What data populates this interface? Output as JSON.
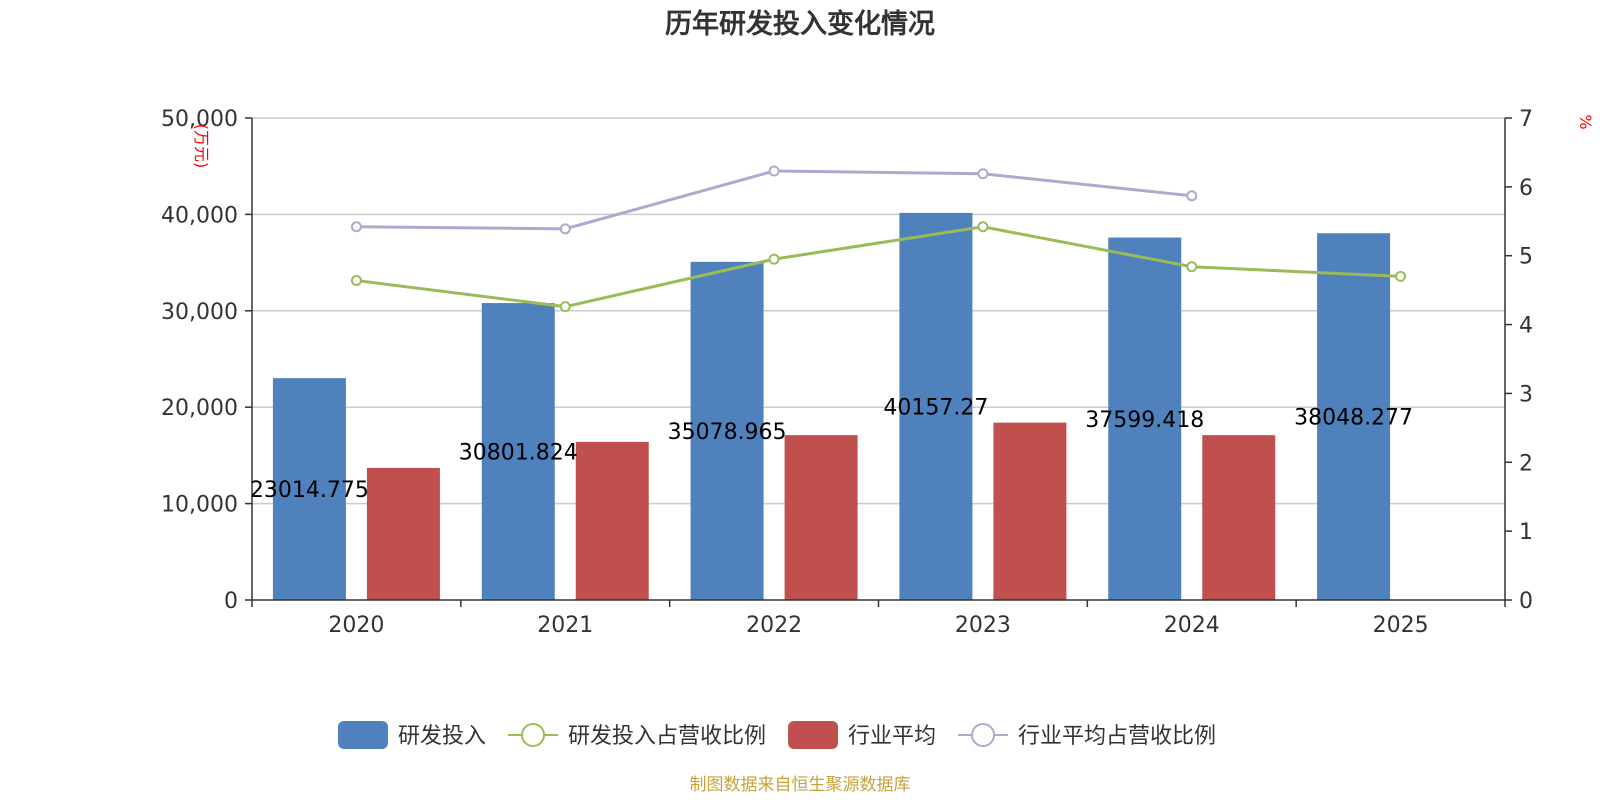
{
  "chart_data": {
    "type": "bar+line",
    "title": "历年研发投入变化情况",
    "categories": [
      "2020",
      "2021",
      "2022",
      "2023",
      "2024",
      "2025"
    ],
    "left_axis": {
      "unit": "万元",
      "min": 0,
      "max": 50000,
      "ticks": [
        "0",
        "10,000",
        "20,000",
        "30,000",
        "40,000",
        "50,000"
      ]
    },
    "right_axis": {
      "unit": "%",
      "min": 0,
      "max": 7,
      "ticks": [
        "0",
        "1",
        "2",
        "3",
        "4",
        "5",
        "6",
        "7"
      ]
    },
    "series": [
      {
        "name": "研发投入",
        "type": "bar",
        "axis": "left",
        "color": "#4f81bd",
        "values": [
          23014.775,
          30801.824,
          35078.965,
          40157.27,
          37599.418,
          38048.277
        ],
        "labels": [
          "23014.775",
          "30801.824",
          "35078.965",
          "40157.27",
          "37599.418",
          "38048.277"
        ]
      },
      {
        "name": "研发投入占营收比例",
        "type": "line",
        "axis": "right",
        "color": "#9bbb59",
        "values": [
          4.64,
          4.26,
          4.95,
          5.42,
          4.84,
          4.7
        ]
      },
      {
        "name": "行业平均",
        "type": "bar",
        "axis": "left",
        "color": "#c0504d",
        "values": [
          13700,
          16400,
          17100,
          18400,
          17100,
          null
        ]
      },
      {
        "name": "行业平均占营收比例",
        "type": "line",
        "axis": "right",
        "color": "#b3a6cf",
        "values": [
          5.42,
          5.39,
          6.23,
          6.19,
          5.87,
          null
        ]
      }
    ],
    "grid": true,
    "legend_position": "bottom",
    "source": "制图数据来自恒生聚源数据库"
  }
}
